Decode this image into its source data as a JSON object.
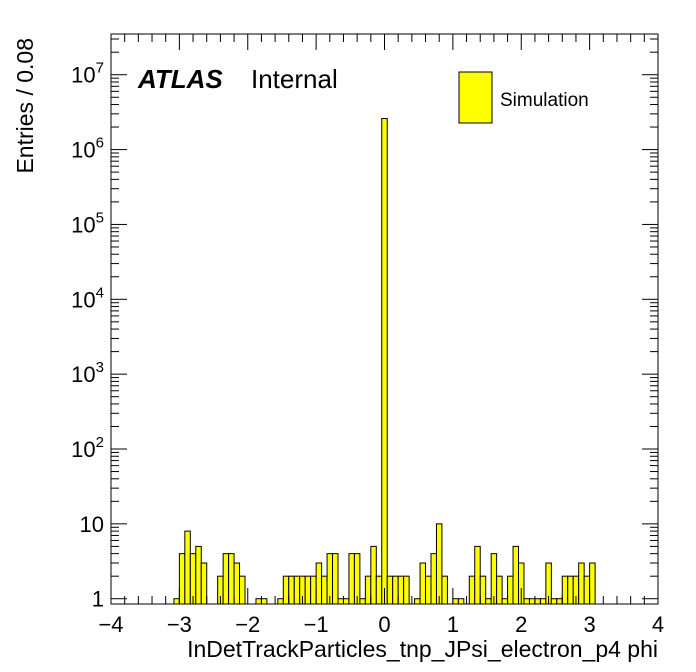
{
  "chart_data": {
    "type": "bar",
    "histogram": true,
    "xlabel": "InDetTrackParticles_tnp_JPsi_electron_p4 phi",
    "ylabel": "Entries / 0.08",
    "xlim": [
      -4,
      4
    ],
    "ylim": [
      0.85,
      35000000
    ],
    "yscale": "log",
    "bin_width": 0.08,
    "fill_color": "#ffff00",
    "line_color": "#000000",
    "grid": false,
    "legend_position": "top-right",
    "legend": [
      {
        "label": "Simulation",
        "color": "#ffff00"
      }
    ],
    "annotations": {
      "atlas": "ATLAS",
      "status": "Internal"
    },
    "x_ticks": [
      {
        "value": -4,
        "label": "−4"
      },
      {
        "value": -3,
        "label": "−3"
      },
      {
        "value": -2,
        "label": "−2"
      },
      {
        "value": -1,
        "label": "−1"
      },
      {
        "value": 0,
        "label": "0"
      },
      {
        "value": 1,
        "label": "1"
      },
      {
        "value": 2,
        "label": "2"
      },
      {
        "value": 3,
        "label": "3"
      },
      {
        "value": 4,
        "label": "4"
      }
    ],
    "y_ticks": [
      {
        "value": 1,
        "base": "1",
        "exp": ""
      },
      {
        "value": 10,
        "base": "10",
        "exp": ""
      },
      {
        "value": 100,
        "base": "10",
        "exp": "2"
      },
      {
        "value": 1000,
        "base": "10",
        "exp": "3"
      },
      {
        "value": 10000,
        "base": "10",
        "exp": "4"
      },
      {
        "value": 100000,
        "base": "10",
        "exp": "5"
      },
      {
        "value": 1000000,
        "base": "10",
        "exp": "6"
      },
      {
        "value": 10000000,
        "base": "10",
        "exp": "7"
      }
    ],
    "bins": [
      {
        "x": -3.08,
        "y": 1
      },
      {
        "x": -3.0,
        "y": 4
      },
      {
        "x": -2.92,
        "y": 8
      },
      {
        "x": -2.84,
        "y": 4
      },
      {
        "x": -2.76,
        "y": 5
      },
      {
        "x": -2.68,
        "y": 3
      },
      {
        "x": -2.44,
        "y": 2
      },
      {
        "x": -2.36,
        "y": 4
      },
      {
        "x": -2.28,
        "y": 4
      },
      {
        "x": -2.2,
        "y": 3
      },
      {
        "x": -2.12,
        "y": 2
      },
      {
        "x": -1.88,
        "y": 1
      },
      {
        "x": -1.8,
        "y": 1
      },
      {
        "x": -1.56,
        "y": 1
      },
      {
        "x": -1.48,
        "y": 2
      },
      {
        "x": -1.4,
        "y": 2
      },
      {
        "x": -1.32,
        "y": 2
      },
      {
        "x": -1.24,
        "y": 2
      },
      {
        "x": -1.16,
        "y": 2
      },
      {
        "x": -1.08,
        "y": 2
      },
      {
        "x": -1.0,
        "y": 3
      },
      {
        "x": -0.92,
        "y": 2
      },
      {
        "x": -0.84,
        "y": 4
      },
      {
        "x": -0.76,
        "y": 4
      },
      {
        "x": -0.68,
        "y": 1
      },
      {
        "x": -0.6,
        "y": 1
      },
      {
        "x": -0.52,
        "y": 4
      },
      {
        "x": -0.44,
        "y": 4
      },
      {
        "x": -0.36,
        "y": 1
      },
      {
        "x": -0.28,
        "y": 2
      },
      {
        "x": -0.2,
        "y": 5
      },
      {
        "x": -0.12,
        "y": 2
      },
      {
        "x": -0.04,
        "y": 2600000
      },
      {
        "x": 0.04,
        "y": 2
      },
      {
        "x": 0.12,
        "y": 2
      },
      {
        "x": 0.2,
        "y": 2
      },
      {
        "x": 0.28,
        "y": 2
      },
      {
        "x": 0.44,
        "y": 1
      },
      {
        "x": 0.52,
        "y": 3
      },
      {
        "x": 0.6,
        "y": 2
      },
      {
        "x": 0.68,
        "y": 4
      },
      {
        "x": 0.76,
        "y": 10
      },
      {
        "x": 0.84,
        "y": 2
      },
      {
        "x": 1.0,
        "y": 1
      },
      {
        "x": 1.08,
        "y": 1
      },
      {
        "x": 1.24,
        "y": 2
      },
      {
        "x": 1.32,
        "y": 5
      },
      {
        "x": 1.4,
        "y": 2
      },
      {
        "x": 1.48,
        "y": 1
      },
      {
        "x": 1.56,
        "y": 4
      },
      {
        "x": 1.64,
        "y": 2
      },
      {
        "x": 1.72,
        "y": 1
      },
      {
        "x": 1.8,
        "y": 2
      },
      {
        "x": 1.88,
        "y": 5
      },
      {
        "x": 1.96,
        "y": 3
      },
      {
        "x": 2.04,
        "y": 1
      },
      {
        "x": 2.12,
        "y": 1
      },
      {
        "x": 2.2,
        "y": 1
      },
      {
        "x": 2.28,
        "y": 1
      },
      {
        "x": 2.36,
        "y": 3
      },
      {
        "x": 2.44,
        "y": 1
      },
      {
        "x": 2.52,
        "y": 1
      },
      {
        "x": 2.6,
        "y": 2
      },
      {
        "x": 2.68,
        "y": 2
      },
      {
        "x": 2.76,
        "y": 2
      },
      {
        "x": 2.84,
        "y": 3
      },
      {
        "x": 2.92,
        "y": 2
      },
      {
        "x": 3.0,
        "y": 3
      }
    ]
  }
}
